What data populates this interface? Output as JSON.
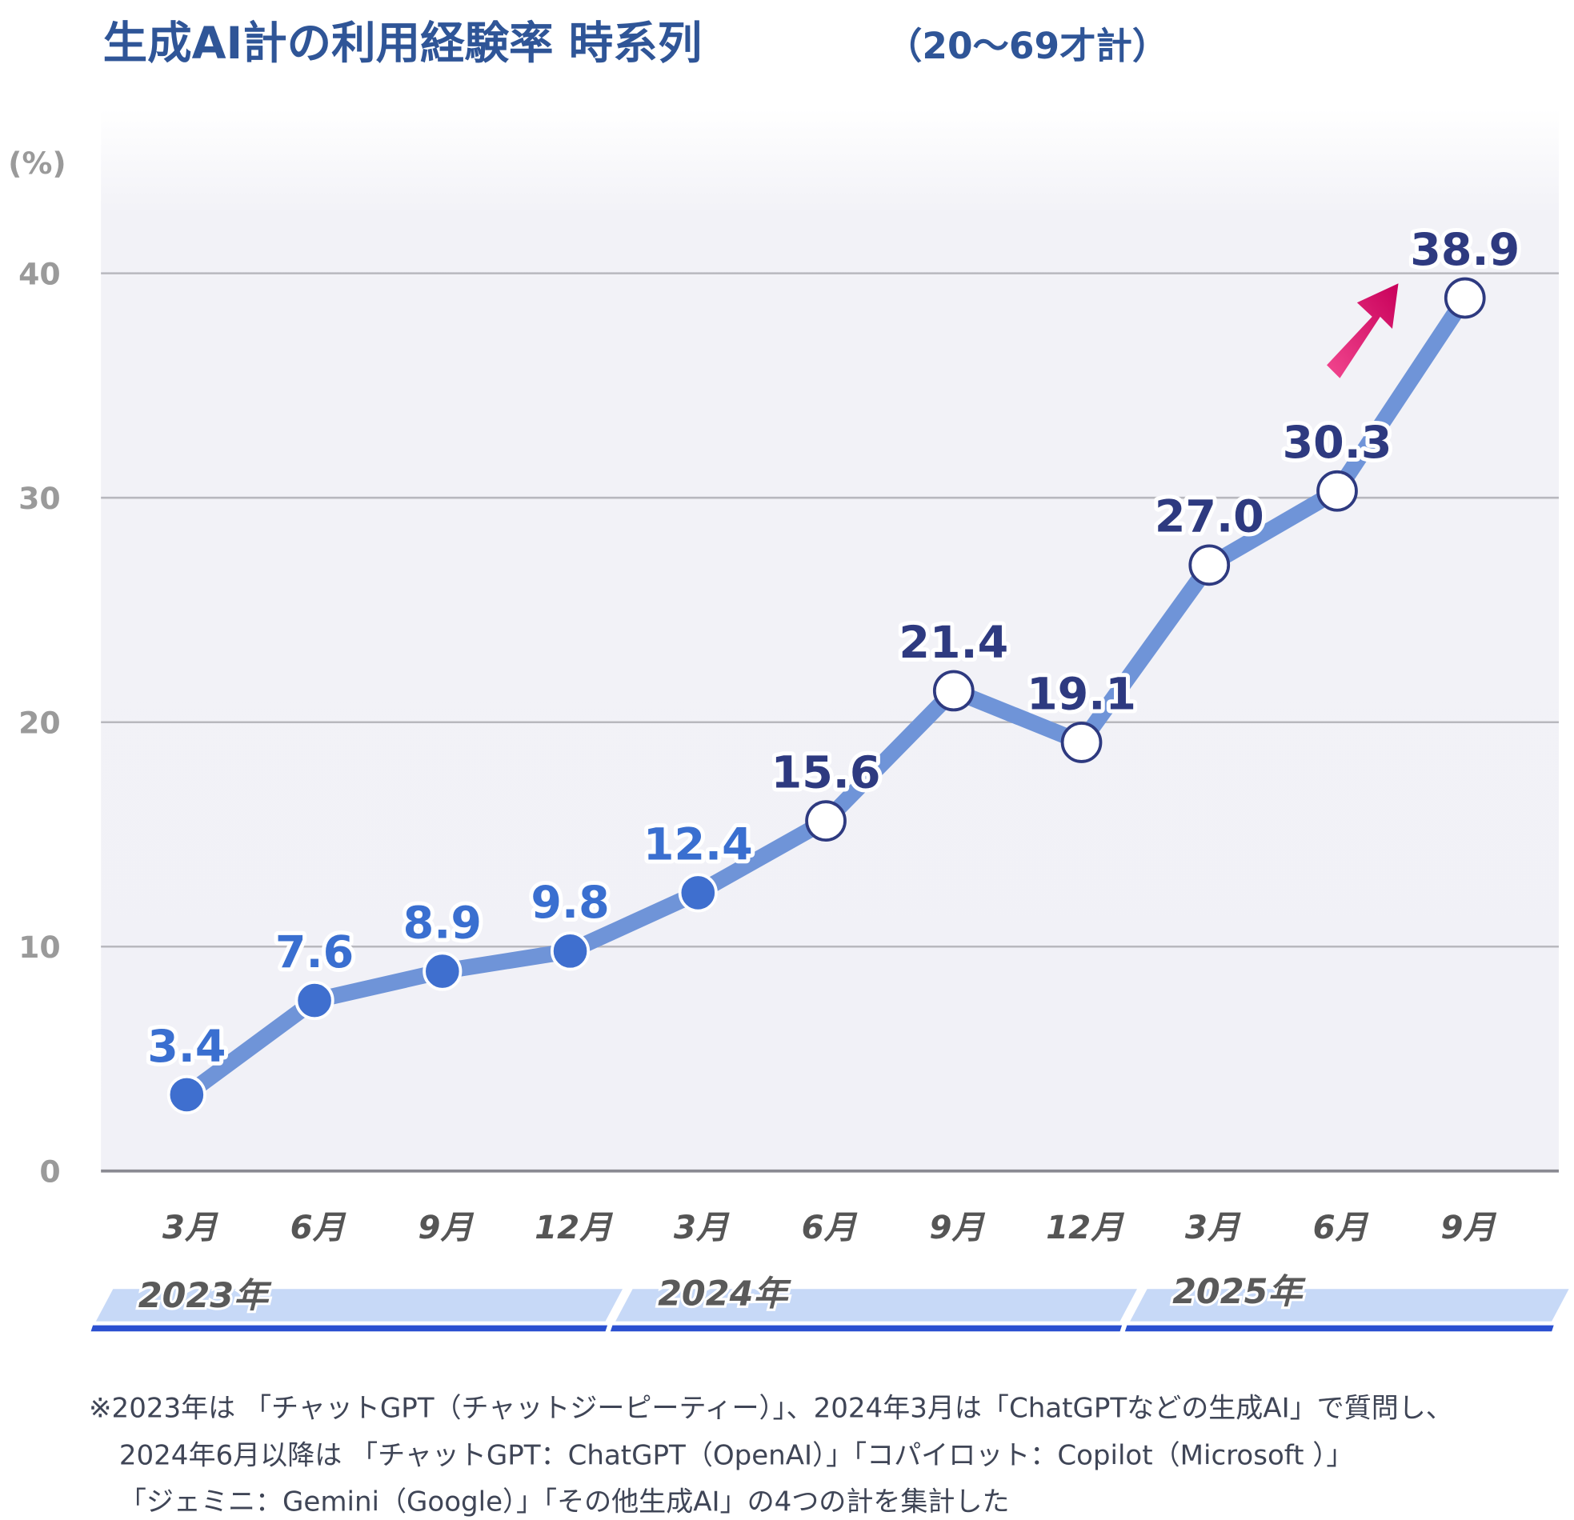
{
  "title": "生成AI計の利用経験率 時系列",
  "title_suffix": "（20〜69才計）",
  "chart_data": {
    "type": "line",
    "ylabel": "(%)",
    "ylim": [
      0,
      40
    ],
    "yticks": [
      "0",
      "10",
      "20",
      "30",
      "40"
    ],
    "grid": true,
    "categories": [
      "3月",
      "6月",
      "9月",
      "12月",
      "3月",
      "6月",
      "9月",
      "12月",
      "3月",
      "6月",
      "9月"
    ],
    "values": [
      3.4,
      7.6,
      8.9,
      9.8,
      12.4,
      15.6,
      21.4,
      19.1,
      27.0,
      30.3,
      38.9
    ],
    "data_labels": [
      "3.4",
      "7.6",
      "8.9",
      "9.8",
      "12.4",
      "15.6",
      "21.4",
      "19.1",
      "27.0",
      "30.3",
      "38.9"
    ],
    "years": [
      {
        "label": "2023年",
        "months": 4
      },
      {
        "label": "2024年",
        "months": 4
      },
      {
        "label": "2025年",
        "months": 3
      }
    ],
    "marker_style": [
      "filled",
      "filled",
      "filled",
      "filled",
      "filled",
      "hollow",
      "hollow",
      "hollow",
      "hollow",
      "hollow",
      "hollow"
    ],
    "annotation": "upward-arrow-icon"
  },
  "colors": {
    "title": "#2f5597",
    "line": "#6f94d8",
    "marker_filled": "#3f6fcf",
    "label_early": "#3a6fd0",
    "label_late": "#2e3a80",
    "year_band": "#c7d9f7",
    "year_bar": "#2b50d0",
    "arrow": "#e0136e"
  },
  "footnote": [
    "※2023年は 「チャットGPT（チャットジーピーティー）」、2024年3月は「ChatGPTなどの生成AI」で質問し、",
    "2024年6月以降は 「チャットGPT：ChatGPT（OpenAI）」「コパイロット：Copilot（Microsoft ）」",
    "「ジェミニ：Gemini（Google）」「その他生成AI」の4つの計を集計した"
  ]
}
